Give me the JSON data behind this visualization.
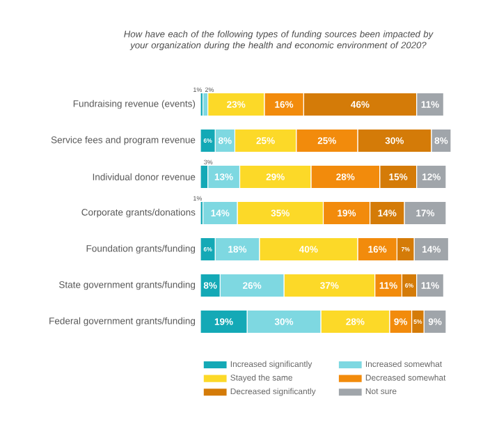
{
  "chart_data": {
    "type": "bar",
    "orientation": "horizontal",
    "stacked": true,
    "relative": false,
    "title": "How have each of the following types of funding sources been impacted by your organization during the health and economic environment of 2020?",
    "categories": [
      "Fundraising revenue (events)",
      "Service fees and program revenue",
      "Individual donor revenue",
      "Corporate grants/donations",
      "Foundation grants/funding",
      "State government grants/funding",
      "Federal government grants/funding"
    ],
    "legend": "bottom",
    "series": [
      {
        "name": "Increased significantly",
        "color": "#14a9b6",
        "values": [
          1,
          6,
          3,
          1,
          6,
          8,
          19
        ],
        "value_labels": [
          "1%",
          "6%",
          "3%",
          "1%",
          "6%",
          "8%",
          "19%"
        ]
      },
      {
        "name": "Increased somewhat",
        "color": "#7ed8e1",
        "values": [
          2,
          8,
          13,
          14,
          18,
          26,
          30
        ],
        "value_labels": [
          "2%",
          "8%",
          "13%",
          "14%",
          "18%",
          "26%",
          "30%"
        ]
      },
      {
        "name": "Stayed the same",
        "color": "#fcd928",
        "values": [
          23,
          25,
          29,
          35,
          40,
          37,
          28
        ],
        "value_labels": [
          "23%",
          "25%",
          "29%",
          "35%",
          "40%",
          "37%",
          "28%"
        ]
      },
      {
        "name": "Decreased somewhat",
        "color": "#f28b0c",
        "values": [
          16,
          25,
          28,
          19,
          16,
          11,
          9
        ],
        "value_labels": [
          "16%",
          "25%",
          "28%",
          "19%",
          "16%",
          "11%",
          "9%"
        ]
      },
      {
        "name": "Decreased significantly",
        "color": "#d47b08",
        "values": [
          46,
          30,
          15,
          14,
          7,
          6,
          5
        ],
        "value_labels": [
          "46%",
          "30%",
          "15%",
          "14%",
          "7%",
          "6%",
          "5%"
        ]
      },
      {
        "name": "Not sure",
        "color": "#a0a5aa",
        "values": [
          11,
          8,
          12,
          17,
          14,
          11,
          9
        ],
        "value_labels": [
          "11%",
          "8%",
          "12%",
          "17%",
          "14%",
          "11%",
          "9%"
        ]
      }
    ]
  }
}
